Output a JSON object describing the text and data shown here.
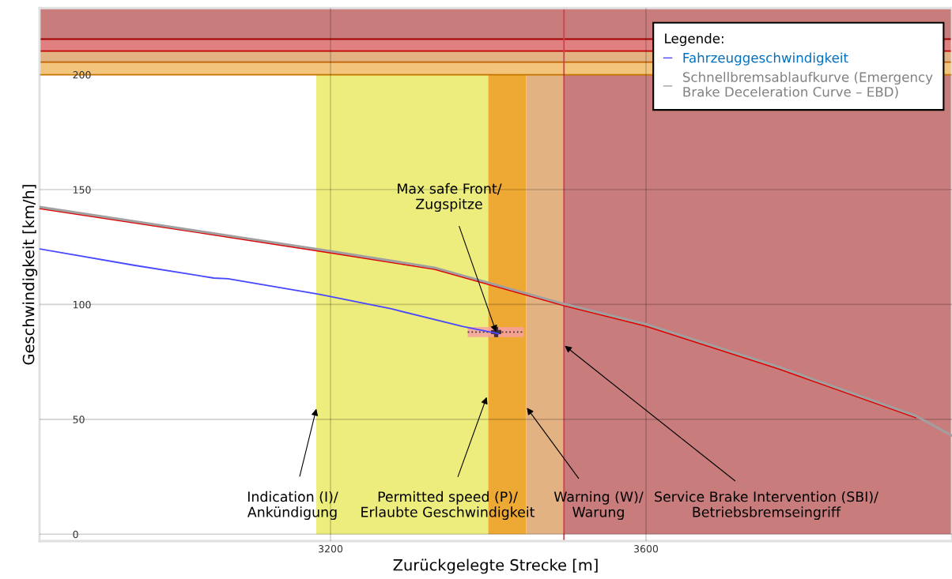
{
  "chart_data": {
    "type": "line",
    "xlabel": "Zurückgelegte Strecke [m]",
    "ylabel": "Geschwindigkeit [km/h]",
    "xlim": [
      2831,
      3988
    ],
    "xticks": [
      3200,
      3600
    ],
    "ylim": [
      -3,
      229
    ],
    "yticks": [
      0,
      50,
      100,
      150,
      200
    ],
    "grid": true,
    "legend": "top right",
    "legend_title": "Legende:",
    "series": [
      {
        "name": "Fahrzeuggeschwindigkeit",
        "color": "#4848ff",
        "x": [
          2831,
          2952,
          3052,
          3070,
          3186,
          3277,
          3368,
          3413
        ],
        "values": [
          124.2,
          117,
          111.5,
          111.2,
          104.4,
          98.1,
          90.4,
          87.3
        ]
      },
      {
        "color": "#e00000",
        "x": [
          2831,
          2981,
          3200,
          3332,
          3496,
          3600,
          3768,
          3942
        ],
        "values": [
          141.8,
          134,
          122.5,
          115.3,
          99.5,
          90.6,
          72,
          50.8
        ]
      },
      {
        "name": "Schnellbremsablaufkurve (Emergency Brake Deceleration Curve – EBD)",
        "color": "#a0a0a0",
        "x": [
          2831,
          2981,
          3200,
          3332,
          3496,
          3600,
          3768,
          3942,
          3988
        ],
        "values": [
          142.4,
          134.6,
          123.2,
          116,
          100.2,
          91.4,
          72.8,
          51.5,
          42.9
        ]
      },
      {
        "type": "line",
        "color": "#403040",
        "line_style": "dotted",
        "x": [
          3374,
          3445
        ],
        "values": [
          88,
          88
        ]
      },
      {
        "type": "scatter",
        "color": "#403040",
        "marker": "cross",
        "x": [
          3410
        ],
        "values": [
          88
        ]
      }
    ],
    "bands": [
      {
        "axis": "x",
        "from": 3182,
        "to": 3400,
        "color": "#eded7d"
      },
      {
        "axis": "x",
        "from": 3400,
        "to": 3448,
        "color": "#eea834"
      },
      {
        "axis": "x",
        "from": 3448,
        "to": 3496,
        "color": "#e2b283"
      },
      {
        "axis": "x",
        "from": 3496,
        "to": 3988,
        "color": "#c87c7c"
      },
      {
        "axis": "y",
        "from": 200,
        "to": 205.5,
        "color": "#f3c47c"
      },
      {
        "axis": "y",
        "from": 205.5,
        "to": 210.3,
        "color": "#e2b283"
      },
      {
        "axis": "y",
        "from": 210.3,
        "to": 215.5,
        "color": "#e08080"
      },
      {
        "axis": "y",
        "from": 215.5,
        "to": 229,
        "color": "#c87c7c"
      }
    ],
    "ref_lines": [
      {
        "axis": "y",
        "value": 200,
        "color": "#f09000"
      },
      {
        "axis": "y",
        "value": 205.5,
        "color": "#c06000"
      },
      {
        "axis": "y",
        "value": 210.3,
        "color": "#c00000"
      },
      {
        "axis": "y",
        "value": 215.5,
        "color": "#a00000"
      },
      {
        "axis": "x",
        "value": 3496,
        "color": "#d04050"
      }
    ],
    "annotations": [
      {
        "text": "Max safe Front/\nZugspitze",
        "x": 3410,
        "y": 88
      },
      {
        "text": "Indication (I)/\nAnkündigung",
        "x": 3182,
        "y": 54.6
      },
      {
        "text": "Permitted speed (P)/\nErlaubte Geschwindigkeit",
        "x": 3398,
        "y": 59.7
      },
      {
        "text": "Warning (W)/\nWarung",
        "x": 3449,
        "y": 55
      },
      {
        "text": "Service Brake Intervention (SBI)/\nBetriebsbremseingriff",
        "x": 3497,
        "y": 82
      }
    ]
  }
}
